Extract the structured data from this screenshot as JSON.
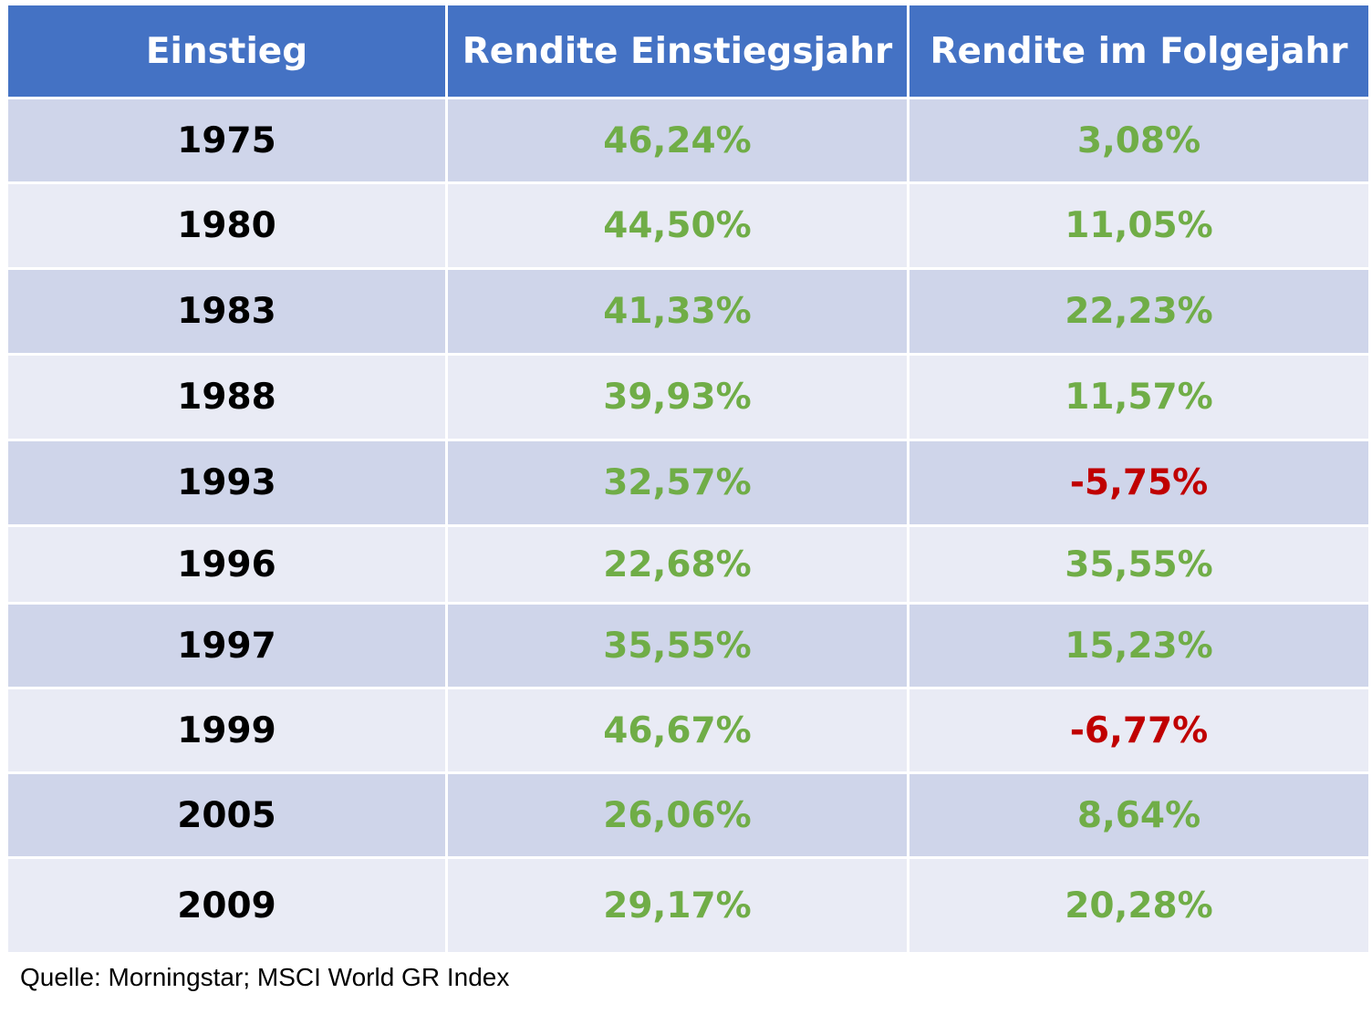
{
  "chart_data": {
    "type": "table",
    "columns": [
      "Einstieg",
      "Rendite Einstiegsjahr",
      "Rendite im Folgejahr"
    ],
    "rows": [
      {
        "year": "1975",
        "entry_return": "46,24%",
        "next_return": "3,08%"
      },
      {
        "year": "1980",
        "entry_return": "44,50%",
        "next_return": "11,05%"
      },
      {
        "year": "1983",
        "entry_return": "41,33%",
        "next_return": "22,23%"
      },
      {
        "year": "1988",
        "entry_return": "39,93%",
        "next_return": "11,57%"
      },
      {
        "year": "1993",
        "entry_return": "32,57%",
        "next_return": "-5,75%"
      },
      {
        "year": "1996",
        "entry_return": "22,68%",
        "next_return": "35,55%"
      },
      {
        "year": "1997",
        "entry_return": "35,55%",
        "next_return": "15,23%"
      },
      {
        "year": "1999",
        "entry_return": "46,67%",
        "next_return": "-6,77%"
      },
      {
        "year": "2005",
        "entry_return": "26,06%",
        "next_return": "8,64%"
      },
      {
        "year": "2009",
        "entry_return": "29,17%",
        "next_return": "20,28%"
      }
    ]
  },
  "source": "Quelle: Morningstar; MSCI World GR Index",
  "colors": {
    "header_bg": "#4472c4",
    "header_text": "#ffffff",
    "row_dark": "#cfd5ea",
    "row_light": "#e9ebf5",
    "positive": "#70ad47",
    "negative": "#c00000",
    "year_text": "#000000"
  }
}
